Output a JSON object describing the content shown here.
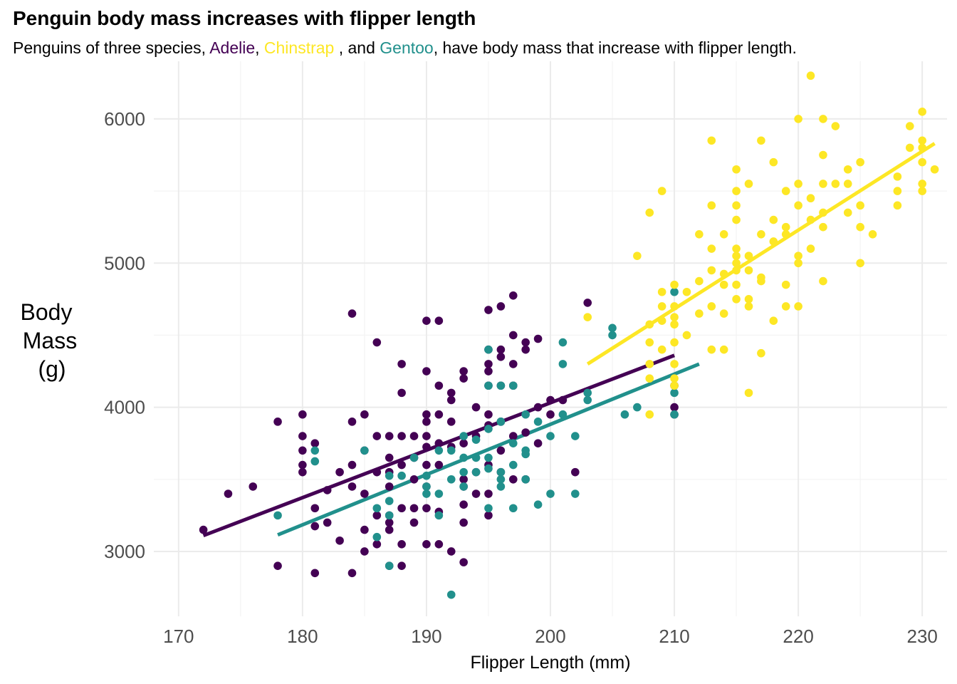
{
  "chart_data": {
    "type": "scatter",
    "title": "Penguin body mass increases with flipper length",
    "subtitle": {
      "prefix": "Penguins of three species, ",
      "adelie": "Adelie",
      "sep1": ", ",
      "chinstrap": "Chinstrap",
      "sep2": " , and ",
      "gentoo": "Gentoo",
      "suffix": ", have body mass that increase with flipper length."
    },
    "xlabel": "Flipper Length (mm)",
    "ylabel_lines": [
      "Body",
      "Mass",
      "(g)"
    ],
    "xlim": [
      168,
      232
    ],
    "ylim": [
      2550,
      6400
    ],
    "xticks": [
      170,
      180,
      190,
      200,
      210,
      220,
      230
    ],
    "yticks": [
      3000,
      4000,
      5000,
      6000
    ],
    "xticks_minor": [
      175,
      185,
      195,
      205,
      215,
      225
    ],
    "yticks_minor": [
      2500,
      3500,
      4500,
      5500
    ],
    "grid": true,
    "legend": "none",
    "series": [
      {
        "name": "Adelie",
        "color": "#440154",
        "fit": [
          [
            172,
            3110
          ],
          [
            210,
            4360
          ]
        ],
        "points": [
          [
            172,
            3150
          ],
          [
            174,
            3400
          ],
          [
            176,
            3450
          ],
          [
            178,
            2900
          ],
          [
            178,
            3900
          ],
          [
            180,
            3950
          ],
          [
            180,
            3800
          ],
          [
            180,
            3700
          ],
          [
            180,
            3600
          ],
          [
            180,
            3550
          ],
          [
            181,
            2850
          ],
          [
            181,
            3175
          ],
          [
            181,
            3300
          ],
          [
            181,
            3750
          ],
          [
            182,
            3425
          ],
          [
            182,
            3200
          ],
          [
            183,
            3550
          ],
          [
            183,
            3075
          ],
          [
            184,
            4650
          ],
          [
            184,
            2850
          ],
          [
            184,
            3900
          ],
          [
            184,
            3450
          ],
          [
            184,
            3600
          ],
          [
            185,
            3950
          ],
          [
            185,
            3700
          ],
          [
            185,
            3400
          ],
          [
            185,
            3150
          ],
          [
            185,
            3000
          ],
          [
            186,
            4450
          ],
          [
            186,
            3800
          ],
          [
            186,
            3550
          ],
          [
            186,
            3250
          ],
          [
            186,
            3050
          ],
          [
            187,
            3800
          ],
          [
            187,
            3650
          ],
          [
            187,
            3550
          ],
          [
            187,
            3450
          ],
          [
            187,
            3250
          ],
          [
            187,
            3200
          ],
          [
            187,
            3150
          ],
          [
            187,
            2900
          ],
          [
            188,
            4300
          ],
          [
            188,
            4100
          ],
          [
            188,
            3800
          ],
          [
            188,
            3600
          ],
          [
            188,
            3300
          ],
          [
            188,
            3050
          ],
          [
            188,
            2900
          ],
          [
            189,
            3800
          ],
          [
            189,
            3650
          ],
          [
            189,
            3500
          ],
          [
            189,
            3300
          ],
          [
            189,
            3200
          ],
          [
            190,
            4600
          ],
          [
            190,
            4250
          ],
          [
            190,
            3950
          ],
          [
            190,
            3900
          ],
          [
            190,
            3800
          ],
          [
            190,
            3725
          ],
          [
            190,
            3600
          ],
          [
            190,
            3450
          ],
          [
            190,
            3300
          ],
          [
            190,
            3050
          ],
          [
            191,
            4600
          ],
          [
            191,
            4150
          ],
          [
            191,
            3950
          ],
          [
            191,
            3750
          ],
          [
            191,
            3600
          ],
          [
            191,
            3275
          ],
          [
            191,
            3050
          ],
          [
            192,
            4100
          ],
          [
            192,
            4050
          ],
          [
            192,
            3900
          ],
          [
            192,
            3725
          ],
          [
            192,
            3000
          ],
          [
            193,
            4250
          ],
          [
            193,
            4200
          ],
          [
            193,
            3750
          ],
          [
            193,
            3500
          ],
          [
            193,
            3450
          ],
          [
            193,
            3325
          ],
          [
            193,
            3200
          ],
          [
            193,
            2925
          ],
          [
            194,
            4000
          ],
          [
            194,
            3800
          ],
          [
            194,
            3550
          ],
          [
            194,
            3400
          ],
          [
            195,
            4675
          ],
          [
            195,
            4400
          ],
          [
            195,
            4300
          ],
          [
            195,
            4250
          ],
          [
            195,
            4150
          ],
          [
            195,
            3950
          ],
          [
            195,
            3875
          ],
          [
            195,
            3600
          ],
          [
            195,
            3400
          ],
          [
            195,
            3250
          ],
          [
            196,
            4700
          ],
          [
            196,
            4400
          ],
          [
            196,
            4350
          ],
          [
            196,
            4150
          ],
          [
            196,
            3900
          ],
          [
            196,
            3700
          ],
          [
            196,
            3550
          ],
          [
            197,
            4775
          ],
          [
            197,
            4500
          ],
          [
            197,
            4300
          ],
          [
            197,
            4150
          ],
          [
            197,
            3800
          ],
          [
            197,
            3500
          ],
          [
            198,
            4450
          ],
          [
            198,
            4400
          ],
          [
            198,
            3825
          ],
          [
            198,
            3500
          ],
          [
            199,
            4475
          ],
          [
            199,
            4000
          ],
          [
            199,
            3750
          ],
          [
            200,
            4050
          ],
          [
            200,
            3950
          ],
          [
            201,
            4050
          ],
          [
            202,
            3550
          ],
          [
            203,
            4725
          ],
          [
            210,
            4000
          ],
          [
            210,
            3950
          ],
          [
            210,
            4150
          ]
        ]
      },
      {
        "name": "Chinstrap",
        "color": "#fde725",
        "fit": [
          [
            203,
            4300
          ],
          [
            231,
            5830
          ]
        ],
        "points": [
          [
            203,
            4625
          ],
          [
            207,
            5050
          ],
          [
            208,
            5350
          ],
          [
            208,
            4575
          ],
          [
            208,
            4300
          ],
          [
            208,
            4200
          ],
          [
            208,
            3950
          ],
          [
            208,
            4450
          ],
          [
            209,
            5500
          ],
          [
            209,
            4800
          ],
          [
            209,
            4700
          ],
          [
            209,
            4600
          ],
          [
            209,
            4400
          ],
          [
            210,
            4850
          ],
          [
            210,
            4700
          ],
          [
            210,
            4575
          ],
          [
            210,
            4450
          ],
          [
            210,
            4300
          ],
          [
            210,
            4200
          ],
          [
            210,
            4150
          ],
          [
            210,
            4625
          ],
          [
            211,
            4800
          ],
          [
            211,
            4500
          ],
          [
            212,
            5200
          ],
          [
            212,
            4875
          ],
          [
            212,
            4650
          ],
          [
            213,
            5850
          ],
          [
            213,
            5400
          ],
          [
            213,
            5100
          ],
          [
            213,
            4950
          ],
          [
            213,
            4700
          ],
          [
            213,
            4400
          ],
          [
            214,
            5200
          ],
          [
            214,
            4925
          ],
          [
            214,
            4850
          ],
          [
            214,
            4650
          ],
          [
            214,
            4400
          ],
          [
            215,
            5650
          ],
          [
            215,
            5500
          ],
          [
            215,
            5400
          ],
          [
            215,
            5300
          ],
          [
            215,
            5100
          ],
          [
            215,
            5050
          ],
          [
            215,
            5000
          ],
          [
            215,
            4950
          ],
          [
            215,
            4850
          ],
          [
            215,
            4750
          ],
          [
            216,
            5550
          ],
          [
            216,
            5050
          ],
          [
            216,
            4950
          ],
          [
            216,
            4750
          ],
          [
            216,
            4700
          ],
          [
            216,
            4100
          ],
          [
            217,
            5850
          ],
          [
            217,
            5200
          ],
          [
            217,
            4900
          ],
          [
            217,
            4875
          ],
          [
            217,
            4375
          ],
          [
            218,
            5700
          ],
          [
            218,
            5300
          ],
          [
            218,
            5150
          ],
          [
            218,
            4600
          ],
          [
            219,
            5500
          ],
          [
            219,
            5250
          ],
          [
            219,
            5200
          ],
          [
            219,
            4850
          ],
          [
            219,
            4700
          ],
          [
            220,
            6000
          ],
          [
            220,
            5550
          ],
          [
            220,
            5400
          ],
          [
            220,
            5050
          ],
          [
            220,
            5000
          ],
          [
            220,
            4700
          ],
          [
            221,
            6300
          ],
          [
            221,
            5450
          ],
          [
            221,
            5300
          ],
          [
            221,
            5100
          ],
          [
            222,
            6000
          ],
          [
            222,
            5750
          ],
          [
            222,
            5550
          ],
          [
            222,
            5350
          ],
          [
            222,
            5250
          ],
          [
            222,
            4875
          ],
          [
            223,
            5950
          ],
          [
            223,
            5550
          ],
          [
            224,
            5650
          ],
          [
            224,
            5550
          ],
          [
            224,
            5350
          ],
          [
            225,
            5700
          ],
          [
            225,
            5400
          ],
          [
            225,
            5250
          ],
          [
            225,
            5000
          ],
          [
            226,
            5200
          ],
          [
            228,
            5600
          ],
          [
            228,
            5500
          ],
          [
            228,
            5400
          ],
          [
            229,
            5950
          ],
          [
            229,
            5800
          ],
          [
            230,
            6050
          ],
          [
            230,
            5850
          ],
          [
            230,
            5800
          ],
          [
            230,
            5700
          ],
          [
            230,
            5550
          ],
          [
            230,
            5500
          ],
          [
            231,
            5650
          ]
        ]
      },
      {
        "name": "Gentoo",
        "color": "#21908c",
        "fit": [
          [
            178,
            3115
          ],
          [
            212,
            4300
          ]
        ],
        "points": [
          [
            178,
            3250
          ],
          [
            181,
            3700
          ],
          [
            181,
            3625
          ],
          [
            185,
            3700
          ],
          [
            186,
            3300
          ],
          [
            186,
            3100
          ],
          [
            187,
            3525
          ],
          [
            187,
            3350
          ],
          [
            187,
            3250
          ],
          [
            187,
            2900
          ],
          [
            188,
            3525
          ],
          [
            189,
            3650
          ],
          [
            190,
            3450
          ],
          [
            190,
            3400
          ],
          [
            190,
            3525
          ],
          [
            191,
            3700
          ],
          [
            191,
            3400
          ],
          [
            191,
            3250
          ],
          [
            192,
            3700
          ],
          [
            192,
            3500
          ],
          [
            192,
            2700
          ],
          [
            193,
            3800
          ],
          [
            193,
            3650
          ],
          [
            193,
            3550
          ],
          [
            193,
            3450
          ],
          [
            194,
            3775
          ],
          [
            194,
            3650
          ],
          [
            194,
            3550
          ],
          [
            195,
            4400
          ],
          [
            195,
            4150
          ],
          [
            195,
            3850
          ],
          [
            195,
            3650
          ],
          [
            195,
            3575
          ],
          [
            195,
            3300
          ],
          [
            196,
            4150
          ],
          [
            196,
            3550
          ],
          [
            196,
            3500
          ],
          [
            196,
            3450
          ],
          [
            196,
            3900
          ],
          [
            197,
            4150
          ],
          [
            197,
            3750
          ],
          [
            197,
            3600
          ],
          [
            197,
            3300
          ],
          [
            198,
            3950
          ],
          [
            198,
            3700
          ],
          [
            198,
            3675
          ],
          [
            198,
            3500
          ],
          [
            199,
            3900
          ],
          [
            199,
            3325
          ],
          [
            200,
            3800
          ],
          [
            200,
            3400
          ],
          [
            201,
            4450
          ],
          [
            201,
            4300
          ],
          [
            201,
            3950
          ],
          [
            202,
            3800
          ],
          [
            202,
            3400
          ],
          [
            203,
            4100
          ],
          [
            203,
            4050
          ],
          [
            205,
            4550
          ],
          [
            205,
            4500
          ],
          [
            206,
            3950
          ],
          [
            207,
            4000
          ],
          [
            210,
            4800
          ],
          [
            210,
            4100
          ],
          [
            210,
            3950
          ]
        ]
      }
    ]
  }
}
